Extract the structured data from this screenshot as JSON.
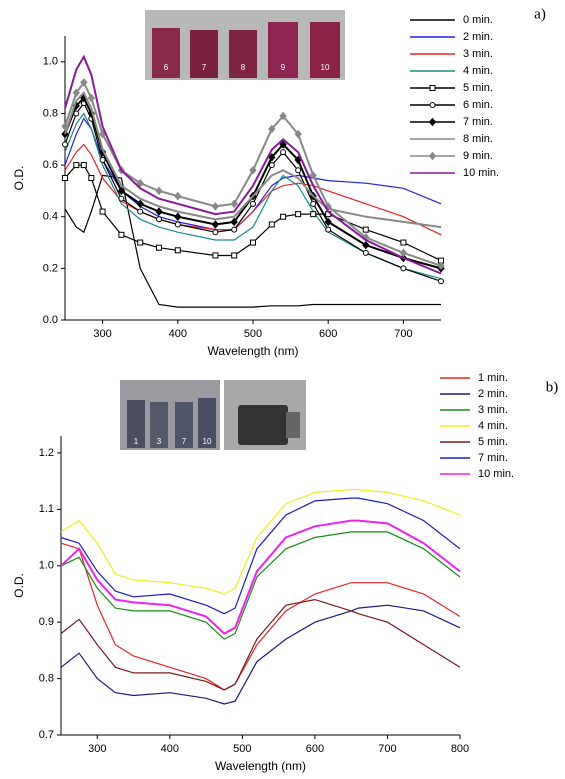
{
  "chart_data": [
    {
      "type": "line",
      "panel_label": "a)",
      "xlabel": "Wavelength (nm)",
      "ylabel": "O.D.",
      "inset_labels": [
        "6",
        "7",
        "8",
        "9",
        "10"
      ],
      "xlim": [
        250,
        750
      ],
      "xticks": [
        300,
        400,
        500,
        600,
        700
      ],
      "ylim": [
        0,
        1.1
      ],
      "yticks": [
        {
          "value": 0,
          "label": "0.0"
        },
        0.2,
        0.4,
        0.6,
        0.8,
        {
          "value": 1,
          "label": "1.0"
        }
      ],
      "x": [
        250,
        265,
        275,
        285,
        300,
        325,
        350,
        375,
        400,
        450,
        475,
        500,
        525,
        540,
        560,
        580,
        600,
        650,
        700,
        750
      ],
      "series": [
        {
          "name": "0 min.",
          "color": "#000000",
          "values": [
            0.43,
            0.36,
            0.34,
            0.42,
            0.56,
            0.55,
            0.2,
            0.06,
            0.05,
            0.05,
            0.05,
            0.05,
            0.055,
            0.055,
            0.055,
            0.06,
            0.06,
            0.06,
            0.06,
            0.06
          ]
        },
        {
          "name": "2 min.",
          "color": "#2222dd",
          "values": [
            0.6,
            0.72,
            0.78,
            0.74,
            0.62,
            0.5,
            0.44,
            0.4,
            0.38,
            0.35,
            0.35,
            0.42,
            0.52,
            0.55,
            0.56,
            0.55,
            0.54,
            0.53,
            0.51,
            0.45
          ]
        },
        {
          "name": "3 min.",
          "color": "#ee2222",
          "values": [
            0.58,
            0.65,
            0.68,
            0.64,
            0.55,
            0.46,
            0.42,
            0.39,
            0.37,
            0.35,
            0.35,
            0.42,
            0.5,
            0.52,
            0.53,
            0.52,
            0.5,
            0.45,
            0.4,
            0.33
          ]
        },
        {
          "name": "4 min.",
          "color": "#1a8a8a",
          "values": [
            0.65,
            0.76,
            0.8,
            0.74,
            0.6,
            0.45,
            0.39,
            0.36,
            0.34,
            0.31,
            0.31,
            0.36,
            0.5,
            0.56,
            0.52,
            0.42,
            0.34,
            0.26,
            0.2,
            0.16
          ]
        },
        {
          "name": "5 min.",
          "color": "#000000",
          "marker": "square",
          "values": [
            0.55,
            0.6,
            0.6,
            0.55,
            0.42,
            0.33,
            0.3,
            0.28,
            0.27,
            0.25,
            0.25,
            0.3,
            0.37,
            0.4,
            0.41,
            0.41,
            0.41,
            0.35,
            0.3,
            0.23
          ]
        },
        {
          "name": "6 min.",
          "color": "#000000",
          "marker": "circle",
          "values": [
            0.68,
            0.8,
            0.84,
            0.78,
            0.62,
            0.47,
            0.42,
            0.39,
            0.37,
            0.34,
            0.35,
            0.45,
            0.6,
            0.65,
            0.58,
            0.45,
            0.35,
            0.26,
            0.2,
            0.15
          ]
        },
        {
          "name": "7 min.",
          "color": "#000000",
          "marker": "diamond",
          "values": [
            0.72,
            0.83,
            0.86,
            0.8,
            0.65,
            0.5,
            0.45,
            0.42,
            0.4,
            0.37,
            0.38,
            0.48,
            0.63,
            0.68,
            0.62,
            0.48,
            0.38,
            0.29,
            0.24,
            0.2
          ]
        },
        {
          "name": "8 min.",
          "color": "#888888",
          "values": [
            0.72,
            0.85,
            0.88,
            0.82,
            0.66,
            0.52,
            0.47,
            0.44,
            0.42,
            0.39,
            0.4,
            0.48,
            0.56,
            0.58,
            0.55,
            0.48,
            0.43,
            0.4,
            0.38,
            0.36
          ]
        },
        {
          "name": "9 min.",
          "color": "#888888",
          "marker": "diamond",
          "values": [
            0.75,
            0.88,
            0.92,
            0.86,
            0.72,
            0.58,
            0.53,
            0.5,
            0.48,
            0.44,
            0.45,
            0.58,
            0.74,
            0.79,
            0.72,
            0.56,
            0.44,
            0.32,
            0.26,
            0.21
          ]
        },
        {
          "name": "10 min.",
          "color": "#881a99",
          "values": [
            0.82,
            0.97,
            1.02,
            0.95,
            0.75,
            0.58,
            0.51,
            0.47,
            0.45,
            0.41,
            0.42,
            0.52,
            0.66,
            0.7,
            0.65,
            0.52,
            0.42,
            0.31,
            0.24,
            0.18
          ]
        }
      ]
    },
    {
      "type": "line",
      "panel_label": "b)",
      "xlabel": "Wavelength (nm)",
      "ylabel": "O.D.",
      "inset_labels": [
        "1",
        "3",
        "7",
        "10"
      ],
      "xlim": [
        250,
        800
      ],
      "xticks": [
        300,
        400,
        500,
        600,
        700,
        800
      ],
      "ylim": [
        0.7,
        1.23
      ],
      "yticks": [
        0.7,
        0.8,
        0.9,
        {
          "value": 1,
          "label": "1.0"
        },
        1.1,
        1.2
      ],
      "x": [
        250,
        275,
        300,
        325,
        350,
        400,
        450,
        475,
        490,
        520,
        560,
        600,
        650,
        660,
        700,
        750,
        800
      ],
      "series": [
        {
          "name": "1 min.",
          "color": "#ee2222",
          "values": [
            1.04,
            1.03,
            0.93,
            0.86,
            0.84,
            0.82,
            0.8,
            0.78,
            0.79,
            0.86,
            0.92,
            0.95,
            0.97,
            0.97,
            0.97,
            0.95,
            0.91
          ]
        },
        {
          "name": "2 min.",
          "color": "#1a1a88",
          "values": [
            0.82,
            0.845,
            0.8,
            0.775,
            0.77,
            0.775,
            0.765,
            0.755,
            0.76,
            0.83,
            0.87,
            0.9,
            0.92,
            0.925,
            0.93,
            0.92,
            0.89
          ]
        },
        {
          "name": "3 min.",
          "color": "#1a8a1a",
          "values": [
            1.0,
            1.015,
            0.96,
            0.925,
            0.92,
            0.92,
            0.9,
            0.87,
            0.88,
            0.98,
            1.03,
            1.05,
            1.06,
            1.06,
            1.06,
            1.03,
            0.98
          ]
        },
        {
          "name": "4 min.",
          "color": "#eeee22",
          "values": [
            1.06,
            1.08,
            1.04,
            0.985,
            0.975,
            0.97,
            0.96,
            0.95,
            0.96,
            1.05,
            1.11,
            1.13,
            1.135,
            1.135,
            1.13,
            1.115,
            1.09
          ]
        },
        {
          "name": "5 min.",
          "color": "#7a1a1a",
          "values": [
            0.88,
            0.905,
            0.86,
            0.82,
            0.81,
            0.81,
            0.795,
            0.78,
            0.79,
            0.87,
            0.93,
            0.94,
            0.92,
            0.915,
            0.9,
            0.86,
            0.82
          ]
        },
        {
          "name": "7 min.",
          "color": "#1a1acc",
          "values": [
            1.05,
            1.04,
            0.99,
            0.955,
            0.945,
            0.95,
            0.93,
            0.915,
            0.925,
            1.03,
            1.09,
            1.115,
            1.12,
            1.12,
            1.11,
            1.08,
            1.03
          ]
        },
        {
          "name": "10 min.",
          "color": "#ee22ee",
          "values": [
            1.0,
            1.03,
            0.975,
            0.94,
            0.935,
            0.93,
            0.91,
            0.88,
            0.89,
            0.99,
            1.05,
            1.07,
            1.08,
            1.08,
            1.075,
            1.04,
            0.99
          ]
        }
      ]
    }
  ]
}
